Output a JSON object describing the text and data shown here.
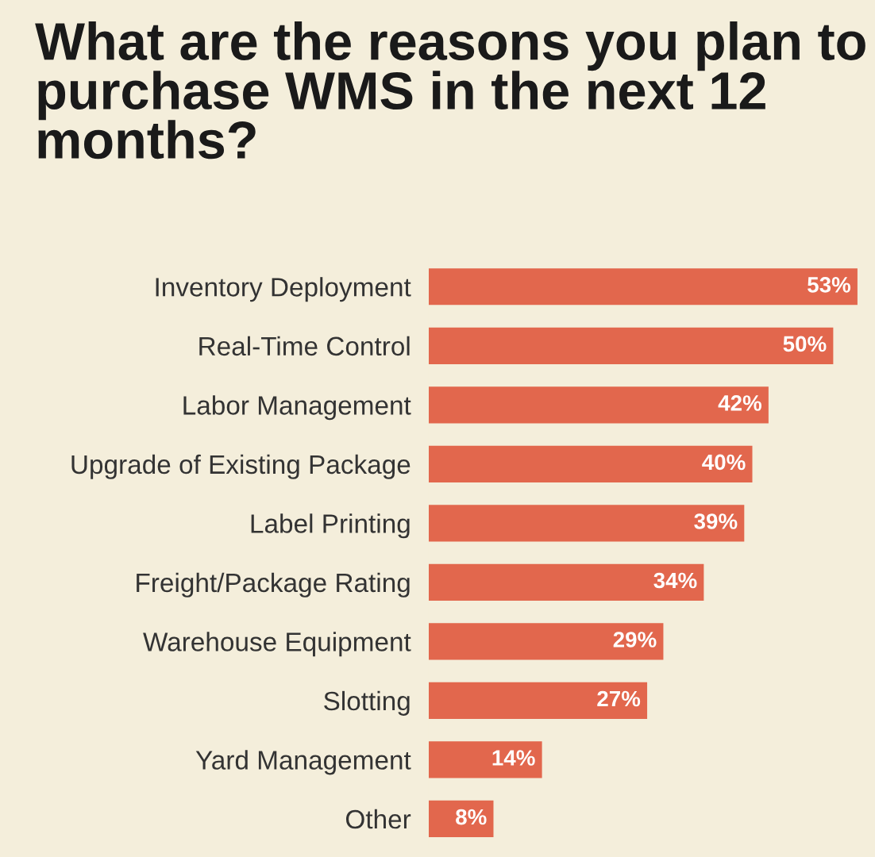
{
  "chart_data": {
    "type": "bar",
    "orientation": "horizontal",
    "title": "What are the reasons you plan to purchase WMS in the next 12 months?",
    "categories": [
      "Inventory Deployment",
      "Real-Time Control",
      "Labor Management",
      "Upgrade of Existing Package",
      "Label Printing",
      "Freight/Package Rating",
      "Warehouse Equipment",
      "Slotting",
      "Yard Management",
      "Other"
    ],
    "values": [
      53,
      50,
      42,
      40,
      39,
      34,
      29,
      27,
      14,
      8
    ],
    "value_labels": [
      "53%",
      "50%",
      "42%",
      "40%",
      "39%",
      "34%",
      "29%",
      "27%",
      "14%",
      "8%"
    ],
    "color": "#e2674d",
    "grid": false,
    "legend": false
  }
}
